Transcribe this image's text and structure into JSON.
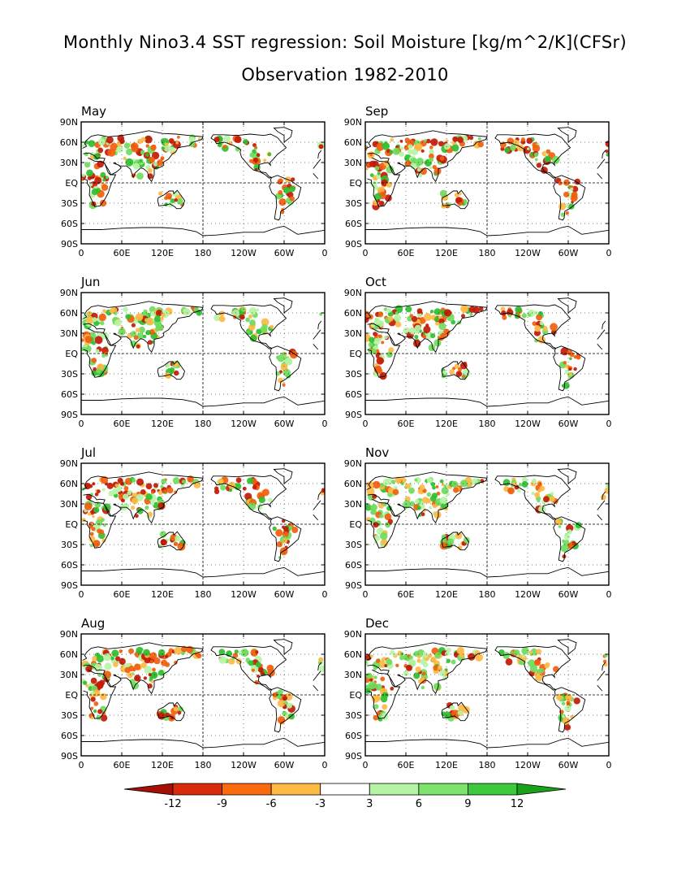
{
  "figure": {
    "title": "Monthly Nino3.4 SST regression: Soil Moisture [kg/m^2/K](CFSr)",
    "subtitle": "Observation 1982-2010"
  },
  "panels": [
    {
      "label": "May",
      "dominant": "dry"
    },
    {
      "label": "Sep",
      "dominant": "dry"
    },
    {
      "label": "Jun",
      "dominant": "mixed"
    },
    {
      "label": "Oct",
      "dominant": "dry"
    },
    {
      "label": "Jul",
      "dominant": "dry"
    },
    {
      "label": "Nov",
      "dominant": "mixed"
    },
    {
      "label": "Aug",
      "dominant": "dry"
    },
    {
      "label": "Dec",
      "dominant": "mixed"
    }
  ],
  "axes": {
    "lat_ticks": [
      "90N",
      "60N",
      "30N",
      "EQ",
      "30S",
      "60S",
      "90S"
    ],
    "lon_ticks": [
      "0",
      "60E",
      "120E",
      "180",
      "120W",
      "60W",
      "0"
    ]
  },
  "colorbar": {
    "labels": [
      "-12",
      "-9",
      "-6",
      "-3",
      "3",
      "6",
      "9",
      "12"
    ],
    "colors": [
      "#a50f05",
      "#d92b0b",
      "#fb6a0c",
      "#fdbb45",
      "#ffffff",
      "#b6f4a5",
      "#7ee36c",
      "#3dc93b",
      "#18a21a"
    ]
  },
  "colors": {
    "dry_strong": "#c21a06",
    "dry_mid": "#f0600e",
    "dry_weak": "#fdba45",
    "wet_weak": "#b6f4a5",
    "wet_mid": "#6fdc5d",
    "wet_strong": "#2fbf30"
  }
}
